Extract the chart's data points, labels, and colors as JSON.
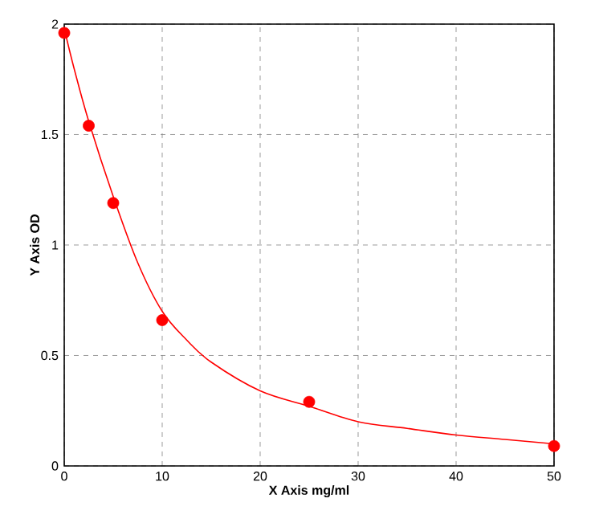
{
  "chart_data": {
    "type": "scatter",
    "xlabel": "X Axis mg/ml",
    "ylabel": "Y Axis OD",
    "xlim": [
      0,
      50
    ],
    "ylim": [
      0,
      2
    ],
    "xticks": [
      0,
      10,
      20,
      30,
      40,
      50
    ],
    "yticks": [
      0,
      0.5,
      1,
      1.5,
      2
    ],
    "grid": true,
    "series": [
      {
        "color": "#ff0000",
        "marker": "circle",
        "x": [
          0,
          2.5,
          5,
          10,
          25,
          50
        ],
        "values": [
          1.96,
          1.54,
          1.19,
          0.66,
          0.29,
          0.09
        ]
      },
      {
        "type": "line",
        "color": "#ff0000",
        "marker": "none",
        "line_style": "solid",
        "x": [
          0,
          1,
          2.5,
          5,
          7.5,
          10,
          12.5,
          15,
          20,
          25,
          30,
          35,
          40,
          45,
          50
        ],
        "values": [
          1.98,
          1.8,
          1.56,
          1.22,
          0.92,
          0.7,
          0.57,
          0.47,
          0.34,
          0.27,
          0.2,
          0.17,
          0.14,
          0.12,
          0.1
        ]
      }
    ]
  }
}
